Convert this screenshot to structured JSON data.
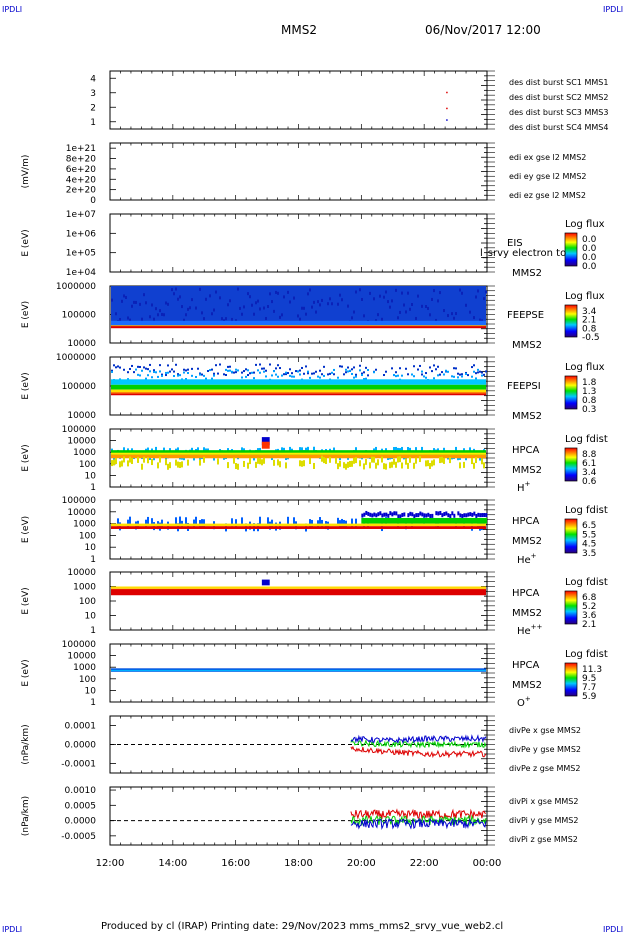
{
  "header": {
    "corner_left": "IPDLI",
    "corner_right": "IPDLI",
    "spacecraft": "MMS2",
    "datetime": "06/Nov/2017 12:00"
  },
  "footer": {
    "text": "Produced by cl (IRAP)   Printing date: 29/Nov/2023   mms_mms2_srvy_vue_web2.cl",
    "corner_left": "IPDLI",
    "corner_right": "IPDLI"
  },
  "colors": {
    "mms1": "#0000cc",
    "mms2": "#cc00cc",
    "mms3": "#dd0000",
    "mms4": "#00aa00",
    "x": "#dd0000",
    "y": "#00cc00",
    "z": "#0000cc"
  },
  "chart_data": {
    "type": "line",
    "x_ticks": [
      "12:00",
      "14:00",
      "16:00",
      "18:00",
      "20:00",
      "22:00",
      "00:00"
    ],
    "xlim": [
      "12:00",
      "00:00"
    ],
    "panels": [
      {
        "id": "burst",
        "type": "scatter",
        "y_ticks": [
          "4",
          "3",
          "2",
          "1"
        ],
        "ylim": [
          0.5,
          4.5
        ],
        "legend": [
          "des dist burst SC1 MMS1",
          "des dist burst SC2 MMS2",
          "des dist burst SC3 MMS3",
          "des dist burst SC4 MMS4"
        ],
        "series": [
          {
            "name": "des dist burst SC2 MMS2",
            "points": [
              [
                "22:42",
                3.0
              ],
              [
                "22:42",
                1.9
              ]
            ]
          },
          {
            "name": "des dist burst SC1 MMS1",
            "points": [
              [
                "22:42",
                1.1
              ]
            ]
          }
        ]
      },
      {
        "id": "edi",
        "type": "line",
        "ylabel": "(mV/m)",
        "y_ticks": [
          "1e+21",
          "8e+20",
          "6e+20",
          "4e+20",
          "2e+20",
          "0"
        ],
        "ylim": [
          0,
          1.1e+21
        ],
        "legend": [
          "edi ex gse l2 MMS2",
          "edi ey gse l2 MMS2",
          "edi ez gse l2 MMS2"
        ]
      },
      {
        "id": "eis",
        "type": "heatmap",
        "ylabel": "E (eV)",
        "y_ticks": [
          "1e+07",
          "1e+06",
          "1e+05",
          "1e+04"
        ],
        "ylim": [
          10000,
          10000000
        ],
        "scale": "log",
        "instrument": [
          "EIS",
          "MMS2"
        ],
        "overlay_text": "l_srvy electron to",
        "colorbar": {
          "label": "Log flux",
          "ticks": [
            "0.0",
            "0.0",
            "0.0",
            "0.0"
          ]
        }
      },
      {
        "id": "feepse",
        "type": "heatmap",
        "ylabel": "E (eV)",
        "y_ticks": [
          "1000000",
          "100000",
          "10000"
        ],
        "ylim": [
          10000,
          1000000
        ],
        "scale": "log",
        "instrument": [
          "FEEPSE",
          "MMS2"
        ],
        "colorbar": {
          "label": "Log flux",
          "ticks": [
            "3.4",
            "2.1",
            "0.8",
            "-0.5"
          ]
        }
      },
      {
        "id": "feepsi",
        "type": "heatmap",
        "ylabel": "E (eV)",
        "y_ticks": [
          "1000000",
          "100000",
          "10000"
        ],
        "ylim": [
          10000,
          1000000
        ],
        "scale": "log",
        "instrument": [
          "FEEPSI",
          "MMS2"
        ],
        "colorbar": {
          "label": "Log flux",
          "ticks": [
            "1.8",
            "1.3",
            "0.8",
            "0.3"
          ]
        }
      },
      {
        "id": "hpca_h",
        "type": "heatmap",
        "ylabel": "E (eV)",
        "y_ticks": [
          "100000",
          "10000",
          "1000",
          "100",
          "10",
          "1"
        ],
        "ylim": [
          1,
          100000
        ],
        "scale": "log",
        "instrument": [
          "HPCA",
          "MMS2"
        ],
        "species": "H",
        "charge": "+",
        "colorbar": {
          "label": "Log fdist",
          "ticks": [
            "8.8",
            "6.1",
            "3.4",
            "0.6"
          ]
        }
      },
      {
        "id": "hpca_he1",
        "type": "heatmap",
        "ylabel": "E (eV)",
        "y_ticks": [
          "100000",
          "10000",
          "1000",
          "100",
          "10",
          "1"
        ],
        "ylim": [
          1,
          100000
        ],
        "scale": "log",
        "instrument": [
          "HPCA",
          "MMS2"
        ],
        "species": "He",
        "charge": "+",
        "colorbar": {
          "label": "Log fdist",
          "ticks": [
            "6.5",
            "5.5",
            "4.5",
            "3.5"
          ]
        }
      },
      {
        "id": "hpca_he2",
        "type": "heatmap",
        "ylabel": "E (eV)",
        "y_ticks": [
          "10000",
          "1000",
          "100",
          "10",
          "1"
        ],
        "ylim": [
          1,
          10000
        ],
        "scale": "log",
        "instrument": [
          "HPCA",
          "MMS2"
        ],
        "species": "He",
        "charge": "++",
        "colorbar": {
          "label": "Log fdist",
          "ticks": [
            "6.8",
            "5.2",
            "3.6",
            "2.1"
          ]
        }
      },
      {
        "id": "hpca_o",
        "type": "heatmap",
        "ylabel": "E (eV)",
        "y_ticks": [
          "100000",
          "10000",
          "1000",
          "100",
          "10",
          "1"
        ],
        "ylim": [
          1,
          100000
        ],
        "scale": "log",
        "instrument": [
          "HPCA",
          "MMS2"
        ],
        "species": "O",
        "charge": "+",
        "colorbar": {
          "label": "Log fdist",
          "ticks": [
            "11.3",
            "9.5",
            "7.7",
            "5.9"
          ]
        }
      },
      {
        "id": "divpe",
        "type": "line",
        "ylabel": "(nPa/km)",
        "y_ticks": [
          "0.0001",
          "0.0000",
          "-0.0001"
        ],
        "ylim": [
          -0.00015,
          0.00015
        ],
        "legend": [
          "divPe x gse MMS2",
          "divPe y gse MMS2",
          "divPe z gse MMS2"
        ],
        "series": [
          {
            "name": "divPe x gse MMS2",
            "x": [
              "19:40",
              "21:00",
              "22:00",
              "23:00",
              "00:00"
            ],
            "values": [
              -2e-05,
              -4e-05,
              -5e-05,
              -5e-05,
              -5e-05
            ]
          },
          {
            "name": "divPe y gse MMS2",
            "x": [
              "19:40",
              "21:00",
              "22:00",
              "23:00",
              "00:00"
            ],
            "values": [
              1e-05,
              0.0,
              0.0,
              0.0,
              0.0
            ]
          },
          {
            "name": "divPe z gse MMS2",
            "x": [
              "19:40",
              "21:00",
              "22:00",
              "23:00",
              "00:00"
            ],
            "values": [
              3e-05,
              2e-05,
              3e-05,
              3e-05,
              3e-05
            ]
          }
        ]
      },
      {
        "id": "divpi",
        "type": "line",
        "ylabel": "(nPa/km)",
        "y_ticks": [
          "0.0010",
          "0.0005",
          "0.0000",
          "-0.0005"
        ],
        "ylim": [
          -0.0008,
          0.0011
        ],
        "legend": [
          "divPi x gse MMS2",
          "divPi y gse MMS2",
          "divPi z gse MMS2"
        ],
        "series": [
          {
            "name": "divPi x gse MMS2",
            "x": [
              "19:40",
              "21:00",
              "22:00",
              "23:00",
              "00:00"
            ],
            "values": [
              0.0002,
              0.0002,
              0.0002,
              0.0002,
              0.0002
            ]
          },
          {
            "name": "divPi y gse MMS2",
            "x": [
              "19:40",
              "21:00",
              "22:00",
              "23:00",
              "00:00"
            ],
            "values": [
              0.0,
              0.0,
              0.0,
              0.0,
              0.0
            ]
          },
          {
            "name": "divPi z gse MMS2",
            "x": [
              "19:40",
              "21:00",
              "22:00",
              "23:00",
              "00:00"
            ],
            "values": [
              -0.0001,
              -0.0001,
              -0.0001,
              -0.0001,
              -0.0001
            ]
          }
        ]
      }
    ]
  }
}
